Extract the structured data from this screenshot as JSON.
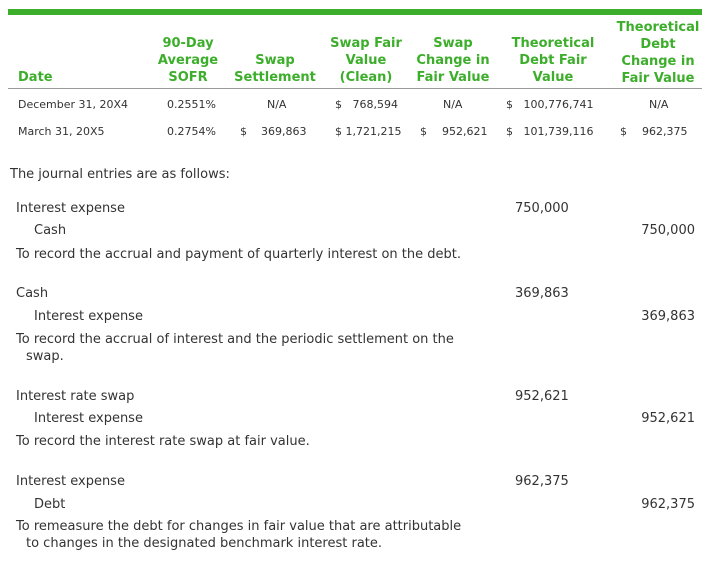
{
  "table": {
    "headers": {
      "date": "Date",
      "sofr": "90-Day\nAverage\nSOFR",
      "settlement": "Swap\nSettlement",
      "swap_fv": "Swap Fair\nValue\n(Clean)",
      "swap_change": "Swap\nChange in\nFair Value",
      "debt_fv": "Theoretical\nDebt Fair\nValue",
      "debt_change": "Theoretical\nDebt\nChange in\nFair Value"
    },
    "rows": [
      {
        "date": "December 31, 20X4",
        "sofr": "0.2551%",
        "settlement": "N/A",
        "swap_fv": "$   768,594",
        "swap_change": "N/A",
        "debt_fv": "$   100,776,741",
        "debt_change": "N/A"
      },
      {
        "date": "March 31, 20X5",
        "sofr": "0.2754%",
        "settlement_sym": "$",
        "settlement_val": "369,863",
        "swap_fv": "$ 1,721,215",
        "swap_change_sym": "$",
        "swap_change_val": "952,621",
        "debt_fv": "$   101,739,116",
        "debt_change_sym": "$",
        "debt_change_val": "962,375"
      }
    ]
  },
  "intro": "The journal entries are as follows:",
  "entries": [
    {
      "debit_account": "Interest expense",
      "debit_amount": "750,000",
      "credit_account": "Cash",
      "credit_amount": "750,000",
      "description": "To record the accrual and payment of quarterly interest on the debt."
    },
    {
      "debit_account": "Cash",
      "debit_amount": "369,863",
      "credit_account": "Interest expense",
      "credit_amount": "369,863",
      "description": "To record the accrual of interest and the periodic settlement on the swap."
    },
    {
      "debit_account": "Interest rate swap",
      "debit_amount": "952,621",
      "credit_account": "Interest expense",
      "credit_amount": "952,621",
      "description": "To record the interest rate swap at fair value."
    },
    {
      "debit_account": "Interest expense",
      "debit_amount": "962,375",
      "credit_account": "Debt",
      "credit_amount": "962,375",
      "description": "To remeasure the debt for changes in fair value that are attributable to changes in the designated benchmark interest rate."
    }
  ]
}
